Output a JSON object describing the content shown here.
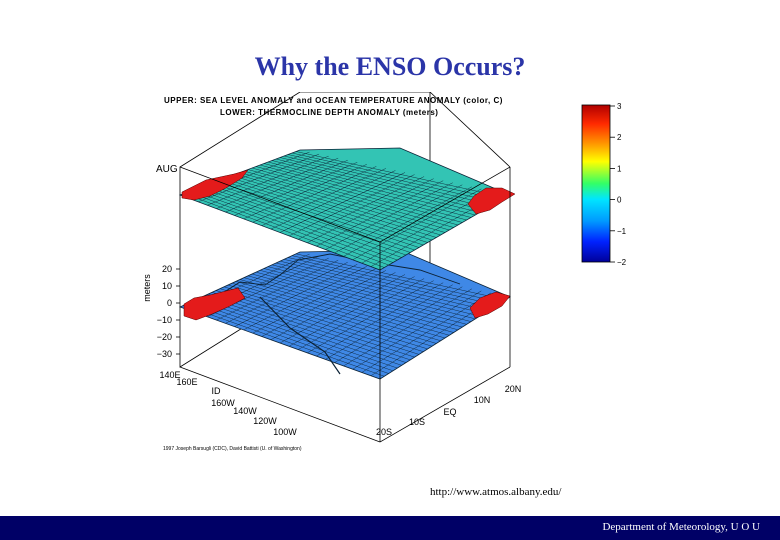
{
  "slide": {
    "title": "Why the ENSO Occurs?",
    "source_url": "http://www.atmos.albany.edu/",
    "footer": "Department of Meteorology,  U O U"
  },
  "chart_data": {
    "type": "surface",
    "title_upper": "UPPER: SEA LEVEL ANOMALY and OCEAN TEMPERATURE ANOMALY (color, C)",
    "title_lower": "LOWER: THERMOCLINE DEPTH ANOMALY (meters)",
    "month_label": "AUG",
    "credit": "1997 Joseph Barsugli (CDC), David Battisti (U. of Washington)",
    "z_axis": {
      "label": "meters",
      "ticks": [
        "20",
        "10",
        "0",
        "−10",
        "−20",
        "−30"
      ],
      "range": [
        -30,
        20
      ]
    },
    "longitude_axis": {
      "ticks": [
        "140E",
        "160E",
        "ID",
        "160W",
        "140W",
        "120W",
        "100W"
      ]
    },
    "latitude_axis": {
      "ticks": [
        "20N",
        "10N",
        "EQ",
        "10S",
        "20S"
      ]
    },
    "colorbar": {
      "ticks": [
        "3",
        "2",
        "1",
        "0",
        "−1",
        "−2"
      ],
      "range": [
        -2,
        3
      ]
    },
    "colors": {
      "upper_surface": "#33c4b4",
      "lower_surface": "#3f88e6",
      "land": "#e41b1b",
      "mesh": "#0b2236",
      "title": "#2b35a8",
      "footer_bg": "#000066"
    }
  }
}
